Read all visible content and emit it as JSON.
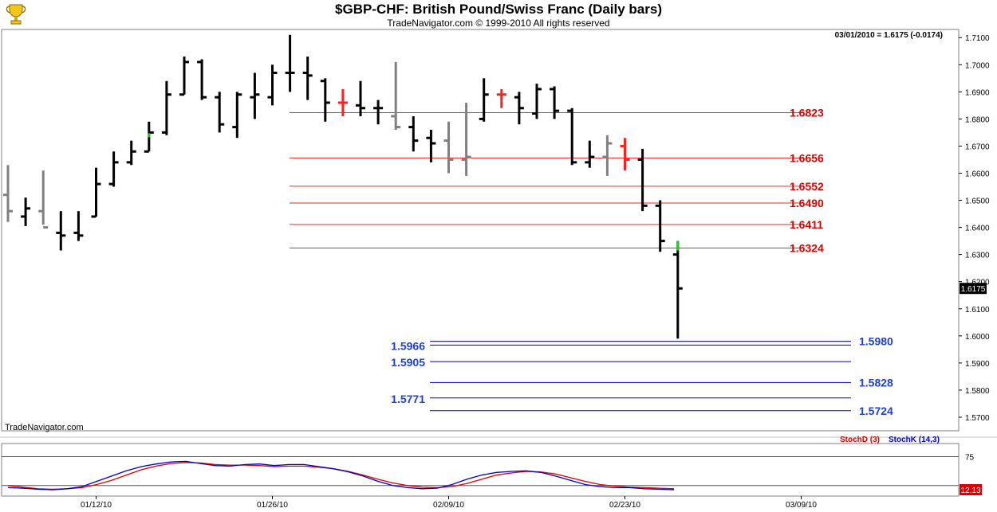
{
  "header": {
    "title": "$GBP-CHF:  British Pound/Swiss Franc  (Daily bars)",
    "subtitle": "TradeNavigator.com © 1999-2010 All rights reserved",
    "logo_icon": "trophy-icon"
  },
  "price_panel": {
    "readout": "03/01/2010 = 1.6175 (-0.0174)",
    "watermark": "TradeNavigator.com",
    "last_price_tag": "1.6175",
    "last_price_tag_value": 1.6175,
    "y_ticks": [
      "1.7100",
      "1.7000",
      "1.6900",
      "1.6800",
      "1.6700",
      "1.6600",
      "1.6500",
      "1.6400",
      "1.6300",
      "1.6200",
      "1.6100",
      "1.6000",
      "1.5900",
      "1.5800",
      "1.5700"
    ]
  },
  "stoch_panel": {
    "legend_d": "StochD (3)",
    "legend_k": "StochK (14,3)",
    "y_ticks": [
      "75"
    ],
    "last_value_tag": "12.13",
    "last_value_tag_value": 12.13,
    "reference_lines": [
      75,
      20
    ]
  },
  "x_axis": {
    "ticks": [
      {
        "label": "01/12/10",
        "bar": 5
      },
      {
        "label": "01/26/10",
        "bar": 15
      },
      {
        "label": "02/09/10",
        "bar": 25
      },
      {
        "label": "02/23/10",
        "bar": 35
      },
      {
        "label": "03/09/10",
        "bar": 45
      }
    ]
  },
  "colors": {
    "bull": "#000000",
    "neutral": "#808080",
    "up_tick": "#22cc22",
    "resistance": "#ff2020",
    "resistance_text": "#dd0000",
    "support": "#0000cc",
    "support_text": "#1f3fd8",
    "stoch_d": "#dd0000",
    "stoch_k": "#0000cc"
  },
  "chart_data": [
    {
      "type": "ohlc",
      "title": "$GBP-CHF:  British Pound/Swiss Franc  (Daily bars)",
      "ylim": [
        1.565,
        1.713
      ],
      "bars": [
        {
          "o": 1.652,
          "h": 1.663,
          "l": 1.642,
          "c": 1.646,
          "color": "neutral"
        },
        {
          "o": 1.644,
          "h": 1.651,
          "l": 1.6405,
          "c": 1.647,
          "color": "bull"
        },
        {
          "o": 1.646,
          "h": 1.661,
          "l": 1.641,
          "c": 1.64,
          "color": "neutral"
        },
        {
          "o": 1.638,
          "h": 1.646,
          "l": 1.6315,
          "c": 1.637,
          "color": "bull"
        },
        {
          "o": 1.638,
          "h": 1.646,
          "l": 1.635,
          "c": 1.637,
          "color": "bull"
        },
        {
          "o": 1.644,
          "h": 1.662,
          "l": 1.644,
          "c": 1.656,
          "color": "bull"
        },
        {
          "o": 1.656,
          "h": 1.668,
          "l": 1.655,
          "c": 1.664,
          "color": "bull"
        },
        {
          "o": 1.664,
          "h": 1.672,
          "l": 1.663,
          "c": 1.668,
          "color": "bull"
        },
        {
          "o": 1.668,
          "h": 1.679,
          "l": 1.668,
          "c": 1.675,
          "color": "up"
        },
        {
          "o": 1.675,
          "h": 1.694,
          "l": 1.674,
          "c": 1.689,
          "color": "bull"
        },
        {
          "o": 1.689,
          "h": 1.703,
          "l": 1.689,
          "c": 1.701,
          "color": "bull"
        },
        {
          "o": 1.701,
          "h": 1.702,
          "l": 1.687,
          "c": 1.688,
          "color": "bull"
        },
        {
          "o": 1.688,
          "h": 1.69,
          "l": 1.675,
          "c": 1.678,
          "color": "bull"
        },
        {
          "o": 1.677,
          "h": 1.69,
          "l": 1.673,
          "c": 1.689,
          "color": "bull"
        },
        {
          "o": 1.688,
          "h": 1.697,
          "l": 1.68,
          "c": 1.689,
          "color": "bull"
        },
        {
          "o": 1.688,
          "h": 1.7,
          "l": 1.685,
          "c": 1.697,
          "color": "bull"
        },
        {
          "o": 1.697,
          "h": 1.711,
          "l": 1.69,
          "c": 1.697,
          "color": "bull"
        },
        {
          "o": 1.697,
          "h": 1.703,
          "l": 1.687,
          "c": 1.696,
          "color": "bull"
        },
        {
          "o": 1.694,
          "h": 1.695,
          "l": 1.679,
          "c": 1.686,
          "color": "bull"
        },
        {
          "o": 1.686,
          "h": 1.691,
          "l": 1.681,
          "c": 1.686,
          "color": "resistance"
        },
        {
          "o": 1.685,
          "h": 1.694,
          "l": 1.681,
          "c": 1.684,
          "color": "bull"
        },
        {
          "o": 1.684,
          "h": 1.687,
          "l": 1.678,
          "c": 1.684,
          "color": "bull"
        },
        {
          "o": 1.681,
          "h": 1.701,
          "l": 1.676,
          "c": 1.677,
          "color": "neutral"
        },
        {
          "o": 1.677,
          "h": 1.681,
          "l": 1.668,
          "c": 1.672,
          "color": "bull"
        },
        {
          "o": 1.673,
          "h": 1.676,
          "l": 1.664,
          "c": 1.671,
          "color": "bull"
        },
        {
          "o": 1.672,
          "h": 1.679,
          "l": 1.66,
          "c": 1.665,
          "color": "neutral"
        },
        {
          "o": 1.665,
          "h": 1.686,
          "l": 1.659,
          "c": 1.666,
          "color": "neutral"
        },
        {
          "o": 1.68,
          "h": 1.695,
          "l": 1.679,
          "c": 1.689,
          "color": "bull"
        },
        {
          "o": 1.689,
          "h": 1.691,
          "l": 1.684,
          "c": 1.689,
          "color": "resistance"
        },
        {
          "o": 1.688,
          "h": 1.69,
          "l": 1.678,
          "c": 1.684,
          "color": "bull"
        },
        {
          "o": 1.682,
          "h": 1.693,
          "l": 1.68,
          "c": 1.691,
          "color": "bull"
        },
        {
          "o": 1.691,
          "h": 1.692,
          "l": 1.68,
          "c": 1.683,
          "color": "bull"
        },
        {
          "o": 1.683,
          "h": 1.684,
          "l": 1.663,
          "c": 1.664,
          "color": "bull"
        },
        {
          "o": 1.664,
          "h": 1.672,
          "l": 1.662,
          "c": 1.666,
          "color": "bull"
        },
        {
          "o": 1.666,
          "h": 1.674,
          "l": 1.659,
          "c": 1.671,
          "color": "neutral"
        },
        {
          "o": 1.67,
          "h": 1.673,
          "l": 1.661,
          "c": 1.665,
          "color": "resistance"
        },
        {
          "o": 1.665,
          "h": 1.669,
          "l": 1.646,
          "c": 1.648,
          "color": "bull"
        },
        {
          "o": 1.648,
          "h": 1.65,
          "l": 1.631,
          "c": 1.635,
          "color": "bull"
        },
        {
          "o": 1.63,
          "h": 1.635,
          "l": 1.599,
          "c": 1.6175,
          "color": "bull",
          "top_tick": "up"
        }
      ],
      "resistance_levels": [
        1.6823,
        1.6656,
        1.6552,
        1.649,
        1.6411,
        1.6324
      ],
      "resistance_labels": [
        "1.6823",
        "1.6656",
        "1.6552",
        "1.6490",
        "1.6411",
        "1.6324"
      ],
      "support_levels": [
        1.598,
        1.5966,
        1.5905,
        1.5828,
        1.5771,
        1.5724
      ],
      "support_labels": [
        {
          "text": "1.5980",
          "side": "right"
        },
        {
          "text": "1.5966",
          "side": "left"
        },
        {
          "text": "1.5905",
          "side": "left"
        },
        {
          "text": "1.5828",
          "side": "right"
        },
        {
          "text": "1.5771",
          "side": "left"
        },
        {
          "text": "1.5724",
          "side": "right"
        }
      ]
    },
    {
      "type": "line",
      "title": "",
      "ylim": [
        0,
        100
      ],
      "series": [
        {
          "name": "StochD (3)",
          "values": [
            20,
            17,
            14,
            13,
            14,
            16,
            22,
            30,
            40,
            50,
            57,
            62,
            64,
            63,
            60,
            59,
            59,
            58,
            56,
            57,
            57,
            55,
            52,
            47,
            40,
            32,
            25,
            20,
            17,
            16,
            18,
            24,
            32,
            40,
            44,
            47,
            46,
            42,
            35,
            28,
            22,
            19,
            17,
            16,
            15,
            14
          ]
        },
        {
          "name": "StochK (14,3)",
          "values": [
            16,
            15,
            13,
            12,
            14,
            18,
            28,
            38,
            48,
            56,
            61,
            65,
            66,
            62,
            58,
            57,
            60,
            61,
            58,
            60,
            60,
            56,
            52,
            46,
            38,
            28,
            20,
            16,
            14,
            15,
            22,
            32,
            40,
            45,
            47,
            48,
            45,
            38,
            30,
            22,
            18,
            16,
            16,
            14,
            13,
            12
          ]
        }
      ]
    }
  ]
}
